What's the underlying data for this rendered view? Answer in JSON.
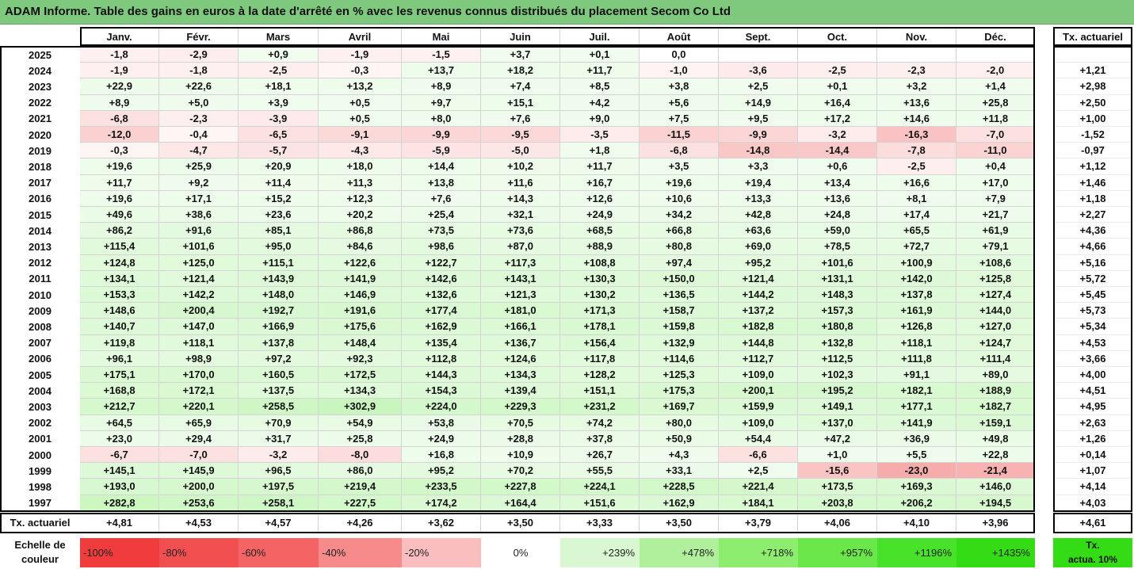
{
  "title": "ADAM Informe. Table des gains en euros à la date d'arrêté en % avec les revenus connus distribués du placement Secom Co Ltd",
  "chart_data": {
    "type": "table",
    "months": [
      "Janv.",
      "Févr.",
      "Mars",
      "Avril",
      "Mai",
      "Juin",
      "Juil.",
      "Août",
      "Sept.",
      "Oct.",
      "Nov.",
      "Déc."
    ],
    "rate_header": "Tx. actuariel",
    "rows": [
      {
        "year": "2025",
        "values": [
          "-1,8",
          "-2,9",
          "+0,9",
          "-1,9",
          "-1,5",
          "+3,7",
          "+0,1",
          "0,0",
          "",
          "",
          "",
          ""
        ],
        "rate": ""
      },
      {
        "year": "2024",
        "values": [
          "-1,9",
          "-1,8",
          "-2,5",
          "-0,3",
          "+13,7",
          "+18,2",
          "+11,7",
          "-1,0",
          "-3,6",
          "-2,5",
          "-2,3",
          "-2,0"
        ],
        "rate": "+1,21"
      },
      {
        "year": "2023",
        "values": [
          "+22,9",
          "+22,6",
          "+18,1",
          "+13,2",
          "+8,9",
          "+7,4",
          "+8,5",
          "+3,8",
          "+2,5",
          "+0,1",
          "+3,2",
          "+1,4"
        ],
        "rate": "+2,98"
      },
      {
        "year": "2022",
        "values": [
          "+8,9",
          "+5,0",
          "+3,9",
          "+0,5",
          "+9,7",
          "+15,1",
          "+4,2",
          "+5,6",
          "+14,9",
          "+16,4",
          "+13,6",
          "+25,8"
        ],
        "rate": "+2,50"
      },
      {
        "year": "2021",
        "values": [
          "-6,8",
          "-2,3",
          "-3,9",
          "+0,5",
          "+8,0",
          "+7,6",
          "+9,0",
          "+7,5",
          "+9,5",
          "+17,2",
          "+14,6",
          "+11,8"
        ],
        "rate": "+1,00"
      },
      {
        "year": "2020",
        "values": [
          "-12,0",
          "-0,4",
          "-6,5",
          "-9,1",
          "-9,9",
          "-9,5",
          "-3,5",
          "-11,5",
          "-9,9",
          "-3,2",
          "-16,3",
          "-7,0"
        ],
        "rate": "-1,52"
      },
      {
        "year": "2019",
        "values": [
          "-0,3",
          "-4,7",
          "-5,7",
          "-4,3",
          "-5,9",
          "-5,0",
          "+1,8",
          "-6,8",
          "-14,8",
          "-14,4",
          "-7,8",
          "-11,0"
        ],
        "rate": "-0,97"
      },
      {
        "year": "2018",
        "values": [
          "+19,6",
          "+25,9",
          "+20,9",
          "+18,0",
          "+14,4",
          "+10,2",
          "+11,7",
          "+3,5",
          "+3,3",
          "+0,6",
          "-2,5",
          "+0,4"
        ],
        "rate": "+1,12"
      },
      {
        "year": "2017",
        "values": [
          "+11,7",
          "+9,2",
          "+11,4",
          "+11,3",
          "+13,8",
          "+11,6",
          "+16,7",
          "+19,6",
          "+19,4",
          "+13,4",
          "+16,6",
          "+17,0"
        ],
        "rate": "+1,46"
      },
      {
        "year": "2016",
        "values": [
          "+19,6",
          "+17,1",
          "+15,2",
          "+12,3",
          "+7,6",
          "+14,3",
          "+12,6",
          "+10,6",
          "+13,3",
          "+13,6",
          "+8,1",
          "+7,9"
        ],
        "rate": "+1,18"
      },
      {
        "year": "2015",
        "values": [
          "+49,6",
          "+38,6",
          "+23,6",
          "+20,2",
          "+25,4",
          "+32,1",
          "+24,9",
          "+34,2",
          "+42,8",
          "+24,8",
          "+17,4",
          "+21,7"
        ],
        "rate": "+2,27"
      },
      {
        "year": "2014",
        "values": [
          "+86,2",
          "+91,6",
          "+85,1",
          "+86,8",
          "+73,5",
          "+73,6",
          "+68,5",
          "+66,8",
          "+63,6",
          "+59,0",
          "+65,5",
          "+61,9"
        ],
        "rate": "+4,36"
      },
      {
        "year": "2013",
        "values": [
          "+115,4",
          "+101,6",
          "+95,0",
          "+84,6",
          "+98,6",
          "+87,0",
          "+88,9",
          "+80,8",
          "+69,0",
          "+78,5",
          "+72,7",
          "+79,1"
        ],
        "rate": "+4,66"
      },
      {
        "year": "2012",
        "values": [
          "+124,8",
          "+125,0",
          "+115,1",
          "+122,6",
          "+122,7",
          "+117,3",
          "+108,8",
          "+97,4",
          "+95,2",
          "+101,6",
          "+100,9",
          "+108,6"
        ],
        "rate": "+5,16"
      },
      {
        "year": "2011",
        "values": [
          "+134,1",
          "+121,4",
          "+143,9",
          "+141,9",
          "+142,6",
          "+143,1",
          "+130,3",
          "+150,0",
          "+121,4",
          "+131,1",
          "+142,0",
          "+125,8"
        ],
        "rate": "+5,72"
      },
      {
        "year": "2010",
        "values": [
          "+153,3",
          "+142,2",
          "+148,0",
          "+146,9",
          "+132,6",
          "+121,3",
          "+130,2",
          "+136,5",
          "+144,2",
          "+148,3",
          "+137,8",
          "+127,4"
        ],
        "rate": "+5,45"
      },
      {
        "year": "2009",
        "values": [
          "+148,6",
          "+200,4",
          "+192,7",
          "+191,6",
          "+177,4",
          "+181,0",
          "+171,3",
          "+158,7",
          "+137,2",
          "+157,3",
          "+161,9",
          "+144,0"
        ],
        "rate": "+5,73"
      },
      {
        "year": "2008",
        "values": [
          "+140,7",
          "+147,0",
          "+166,9",
          "+175,6",
          "+162,9",
          "+166,1",
          "+178,1",
          "+159,8",
          "+182,8",
          "+180,8",
          "+126,8",
          "+127,0"
        ],
        "rate": "+5,34"
      },
      {
        "year": "2007",
        "values": [
          "+119,8",
          "+118,1",
          "+137,8",
          "+148,4",
          "+135,4",
          "+136,7",
          "+156,4",
          "+132,9",
          "+144,8",
          "+132,8",
          "+118,1",
          "+124,7"
        ],
        "rate": "+4,53"
      },
      {
        "year": "2006",
        "values": [
          "+96,1",
          "+98,9",
          "+97,2",
          "+92,3",
          "+112,8",
          "+124,6",
          "+117,8",
          "+114,6",
          "+112,7",
          "+112,5",
          "+111,8",
          "+111,4"
        ],
        "rate": "+3,66"
      },
      {
        "year": "2005",
        "values": [
          "+175,1",
          "+170,0",
          "+160,5",
          "+172,5",
          "+144,3",
          "+134,3",
          "+128,2",
          "+125,3",
          "+109,0",
          "+102,3",
          "+91,1",
          "+89,0"
        ],
        "rate": "+4,00"
      },
      {
        "year": "2004",
        "values": [
          "+168,8",
          "+172,1",
          "+137,5",
          "+134,3",
          "+154,3",
          "+139,4",
          "+151,1",
          "+175,3",
          "+200,1",
          "+195,2",
          "+182,1",
          "+188,9"
        ],
        "rate": "+4,51"
      },
      {
        "year": "2003",
        "values": [
          "+212,7",
          "+220,1",
          "+258,5",
          "+302,9",
          "+224,0",
          "+229,3",
          "+231,2",
          "+169,7",
          "+159,9",
          "+149,1",
          "+177,1",
          "+182,7"
        ],
        "rate": "+4,95"
      },
      {
        "year": "2002",
        "values": [
          "+64,5",
          "+65,9",
          "+70,9",
          "+54,9",
          "+53,8",
          "+70,5",
          "+74,2",
          "+80,0",
          "+109,0",
          "+137,0",
          "+141,9",
          "+159,1"
        ],
        "rate": "+2,63"
      },
      {
        "year": "2001",
        "values": [
          "+23,0",
          "+29,4",
          "+31,7",
          "+25,8",
          "+24,9",
          "+28,8",
          "+37,8",
          "+50,9",
          "+54,4",
          "+47,2",
          "+36,9",
          "+49,8"
        ],
        "rate": "+1,26"
      },
      {
        "year": "2000",
        "values": [
          "-6,7",
          "-7,0",
          "-3,2",
          "-8,0",
          "+16,8",
          "+10,9",
          "+26,7",
          "+4,3",
          "-6,6",
          "+1,0",
          "+5,5",
          "+22,8"
        ],
        "rate": "+0,14"
      },
      {
        "year": "1999",
        "values": [
          "+145,1",
          "+145,9",
          "+96,5",
          "+86,0",
          "+95,2",
          "+70,2",
          "+55,5",
          "+33,1",
          "+2,5",
          "-15,6",
          "-23,0",
          "-21,4"
        ],
        "rate": "+1,07"
      },
      {
        "year": "1998",
        "values": [
          "+193,0",
          "+200,0",
          "+197,5",
          "+219,4",
          "+233,5",
          "+227,8",
          "+224,1",
          "+228,5",
          "+221,4",
          "+173,5",
          "+169,3",
          "+146,0"
        ],
        "rate": "+4,14"
      },
      {
        "year": "1997",
        "values": [
          "+282,8",
          "+253,6",
          "+258,1",
          "+227,5",
          "+174,2",
          "+164,4",
          "+151,6",
          "+162,9",
          "+184,1",
          "+203,8",
          "+206,2",
          "+194,5"
        ],
        "rate": "+4,03"
      }
    ],
    "footer": {
      "label": "Tx. actuariel",
      "values": [
        "+4,81",
        "+4,53",
        "+4,57",
        "+4,26",
        "+3,62",
        "+3,50",
        "+3,33",
        "+3,50",
        "+3,79",
        "+4,06",
        "+4,10",
        "+3,96"
      ],
      "rate": "+4,61"
    },
    "color_scale": {
      "label_line1": "Echelle de",
      "label_line2": "couleur",
      "stops": [
        {
          "label": "-100%",
          "color": "#f03c3c"
        },
        {
          "label": "-80%",
          "color": "#f25050"
        },
        {
          "label": "-60%",
          "color": "#f46464"
        },
        {
          "label": "-40%",
          "color": "#f78a8a"
        },
        {
          "label": "-20%",
          "color": "#fbbebe"
        },
        {
          "label": "0%",
          "color": "#ffffff"
        },
        {
          "label": "+239%",
          "color": "#d9f7d0"
        },
        {
          "label": "+478%",
          "color": "#b0f09d"
        },
        {
          "label": "+718%",
          "color": "#8ded6f"
        },
        {
          "label": "+957%",
          "color": "#6ae84a"
        },
        {
          "label": "+1196%",
          "color": "#48e22a"
        },
        {
          "label": "+1435%",
          "color": "#33dc14"
        }
      ],
      "rate_swatch_line1": "Tx.",
      "rate_swatch_line2": "actua. 10%",
      "rate_swatch_color": "#33dc14"
    }
  }
}
